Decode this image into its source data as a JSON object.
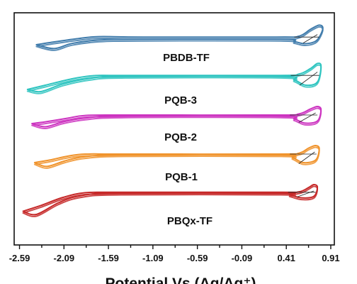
{
  "chart_data": {
    "type": "line",
    "title": "",
    "xlabel": "Potential Vs (Ag/Ag⁺)",
    "ylabel": "",
    "xlim": [
      -2.65,
      0.95
    ],
    "xticks": [
      "-2.59",
      "-2.09",
      "-1.59",
      "-1.09",
      "-0.59",
      "-0.09",
      "0.41",
      "0.91"
    ],
    "legend": "none",
    "grid": false,
    "series": [
      {
        "name": "PBDB-TF",
        "color": "#3f7bab",
        "offset": 0,
        "upper": [
          [
            -2.4,
            0.0
          ],
          [
            -2.25,
            0.1
          ],
          [
            -1.95,
            0.28
          ],
          [
            -1.7,
            0.38
          ],
          [
            -1.2,
            0.36
          ],
          [
            0.3,
            0.36
          ],
          [
            0.55,
            0.4
          ],
          [
            0.68,
            0.72
          ],
          [
            0.78,
            0.92
          ],
          [
            0.82,
            0.75
          ]
        ],
        "lower": [
          [
            0.82,
            0.75
          ],
          [
            0.75,
            0.2
          ],
          [
            0.62,
            0.05
          ],
          [
            0.5,
            0.15
          ],
          [
            0.35,
            0.26
          ],
          [
            -1.2,
            0.26
          ],
          [
            -1.7,
            0.22
          ],
          [
            -2.0,
            0.06
          ],
          [
            -2.2,
            -0.18
          ],
          [
            -2.4,
            0.0
          ]
        ]
      },
      {
        "name": "PQB-3",
        "color": "#2ec4c0",
        "offset": 1,
        "upper": [
          [
            -2.5,
            -0.2
          ],
          [
            -2.3,
            0.0
          ],
          [
            -2.0,
            0.3
          ],
          [
            -1.75,
            0.45
          ],
          [
            -1.4,
            0.46
          ],
          [
            0.3,
            0.46
          ],
          [
            0.55,
            0.52
          ],
          [
            0.68,
            0.78
          ],
          [
            0.76,
            1.02
          ],
          [
            0.8,
            0.9
          ]
        ],
        "lower": [
          [
            0.8,
            0.9
          ],
          [
            0.76,
            0.15
          ],
          [
            0.63,
            0.0
          ],
          [
            0.5,
            0.25
          ],
          [
            0.35,
            0.42
          ],
          [
            -1.4,
            0.42
          ],
          [
            -1.8,
            0.32
          ],
          [
            -2.1,
            0.06
          ],
          [
            -2.35,
            -0.3
          ],
          [
            -2.5,
            -0.2
          ]
        ]
      },
      {
        "name": "PQB-2",
        "color": "#cc33c0",
        "offset": 2,
        "upper": [
          [
            -2.45,
            0.0
          ],
          [
            -2.3,
            0.08
          ],
          [
            -2.05,
            0.25
          ],
          [
            -1.85,
            0.38
          ],
          [
            -1.4,
            0.4
          ],
          [
            0.3,
            0.4
          ],
          [
            0.55,
            0.45
          ],
          [
            0.68,
            0.68
          ],
          [
            0.76,
            0.8
          ],
          [
            0.8,
            0.65
          ]
        ],
        "lower": [
          [
            0.8,
            0.65
          ],
          [
            0.76,
            0.12
          ],
          [
            0.62,
            0.02
          ],
          [
            0.5,
            0.22
          ],
          [
            0.35,
            0.36
          ],
          [
            -1.4,
            0.36
          ],
          [
            -1.85,
            0.26
          ],
          [
            -2.1,
            0.08
          ],
          [
            -2.3,
            -0.15
          ],
          [
            -2.45,
            0.0
          ]
        ]
      },
      {
        "name": "PQB-1",
        "color": "#f0932b",
        "offset": 3,
        "upper": [
          [
            -2.42,
            0.0
          ],
          [
            -2.25,
            0.12
          ],
          [
            -2.05,
            0.3
          ],
          [
            -1.85,
            0.4
          ],
          [
            -1.4,
            0.4
          ],
          [
            0.3,
            0.4
          ],
          [
            0.55,
            0.44
          ],
          [
            0.66,
            0.68
          ],
          [
            0.74,
            0.8
          ],
          [
            0.78,
            0.65
          ]
        ],
        "lower": [
          [
            0.78,
            0.65
          ],
          [
            0.74,
            0.12
          ],
          [
            0.6,
            0.0
          ],
          [
            0.48,
            0.24
          ],
          [
            0.35,
            0.37
          ],
          [
            -1.4,
            0.37
          ],
          [
            -1.85,
            0.28
          ],
          [
            -2.08,
            0.08
          ],
          [
            -2.28,
            -0.18
          ],
          [
            -2.42,
            0.0
          ]
        ]
      },
      {
        "name": "PBQx-TF",
        "color": "#c62828",
        "offset": 4,
        "upper": [
          [
            -2.55,
            -0.25
          ],
          [
            -2.35,
            0.02
          ],
          [
            -2.1,
            0.4
          ],
          [
            -1.85,
            0.62
          ],
          [
            -1.45,
            0.64
          ],
          [
            0.3,
            0.64
          ],
          [
            0.55,
            0.66
          ],
          [
            0.66,
            0.86
          ],
          [
            0.72,
            1.0
          ],
          [
            0.76,
            0.88
          ]
        ],
        "lower": [
          [
            0.76,
            0.88
          ],
          [
            0.72,
            0.45
          ],
          [
            0.58,
            0.38
          ],
          [
            0.45,
            0.52
          ],
          [
            0.35,
            0.6
          ],
          [
            -1.45,
            0.6
          ],
          [
            -1.9,
            0.48
          ],
          [
            -2.15,
            0.15
          ],
          [
            -2.4,
            -0.4
          ],
          [
            -2.55,
            -0.25
          ]
        ]
      }
    ],
    "tangents": [
      {
        "series": "PBDB-TF",
        "from": [
          0.6,
          0.08
        ],
        "to": [
          0.76,
          0.48
        ]
      },
      {
        "series": "PQB-3",
        "from": [
          0.56,
          0.0
        ],
        "to": [
          0.76,
          0.62
        ]
      },
      {
        "series": "PQB-2",
        "from": [
          0.55,
          0.05
        ],
        "to": [
          0.74,
          0.5
        ]
      },
      {
        "series": "PQB-1",
        "from": [
          0.55,
          -0.05
        ],
        "to": [
          0.73,
          0.5
        ]
      },
      {
        "series": "PBQx-TF",
        "from": [
          0.53,
          0.42
        ],
        "to": [
          0.72,
          0.7
        ]
      }
    ]
  }
}
